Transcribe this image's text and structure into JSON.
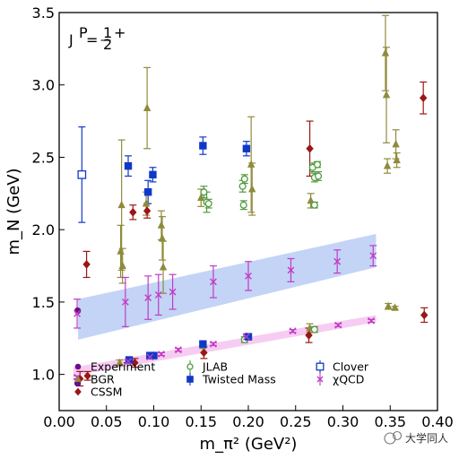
{
  "chart_data": {
    "type": "scatter",
    "title": "",
    "xlabel": "m_π² (GeV²)",
    "ylabel": "m_N (GeV)",
    "xlim": [
      0.0,
      0.4
    ],
    "ylim": [
      0.75,
      3.5
    ],
    "xticks": [
      "0.00",
      "0.05",
      "0.10",
      "0.15",
      "0.20",
      "0.25",
      "0.30",
      "0.35",
      "0.40"
    ],
    "yticks": [
      "1.0",
      "1.5",
      "2.0",
      "2.5",
      "3.0",
      "3.5"
    ],
    "grid": false,
    "legend_position": "bottom",
    "annotation": {
      "label": "J",
      "sup": "P",
      "eq": " =",
      "num": "1",
      "den": "2",
      "sign": "+"
    },
    "bands": [
      {
        "name": "upper band",
        "color": "#bccff5",
        "x": [
          0.02,
          0.335
        ],
        "upper": [
          1.52,
          1.97
        ],
        "lower": [
          1.24,
          1.74
        ]
      },
      {
        "name": "lower band",
        "color": "#f6c6f2",
        "x": [
          0.015,
          0.335
        ],
        "upper": [
          1.05,
          1.41
        ],
        "lower": [
          0.99,
          1.36
        ]
      }
    ],
    "series": [
      {
        "name": "Experiment",
        "marker": "circle",
        "color": "#6a0f8a",
        "points": [
          {
            "x": 0.0195,
            "y": 0.939,
            "err": 0.0
          },
          {
            "x": 0.0195,
            "y": 1.44,
            "err": 0.0
          }
        ]
      },
      {
        "name": "BGR",
        "marker": "triangle",
        "color": "#8f8b3b",
        "points": [
          {
            "x": 0.064,
            "y": 1.08,
            "err": 0.02
          },
          {
            "x": 0.065,
            "y": 1.85,
            "err": 0.18
          },
          {
            "x": 0.066,
            "y": 2.17,
            "err": 0.45
          },
          {
            "x": 0.067,
            "y": 1.75,
            "err": 0.12
          },
          {
            "x": 0.092,
            "y": 2.18,
            "err": 0.08
          },
          {
            "x": 0.093,
            "y": 2.84,
            "err": 0.28
          },
          {
            "x": 0.1,
            "y": 1.13,
            "err": 0.02
          },
          {
            "x": 0.108,
            "y": 2.03,
            "err": 0.1
          },
          {
            "x": 0.109,
            "y": 1.94,
            "err": 0.15
          },
          {
            "x": 0.11,
            "y": 1.74,
            "err": 0.18
          },
          {
            "x": 0.15,
            "y": 2.22,
            "err": 0.06
          },
          {
            "x": 0.198,
            "y": 1.26,
            "err": 0.02
          },
          {
            "x": 0.203,
            "y": 2.45,
            "err": 0.33
          },
          {
            "x": 0.204,
            "y": 2.28,
            "err": 0.18
          },
          {
            "x": 0.265,
            "y": 1.32,
            "err": 0.03
          },
          {
            "x": 0.266,
            "y": 2.2,
            "err": 0.05
          },
          {
            "x": 0.345,
            "y": 3.22,
            "err": 0.26
          },
          {
            "x": 0.346,
            "y": 2.93,
            "err": 0.33
          },
          {
            "x": 0.347,
            "y": 2.44,
            "err": 0.05
          },
          {
            "x": 0.348,
            "y": 1.47,
            "err": 0.02
          },
          {
            "x": 0.355,
            "y": 1.46,
            "err": 0.01
          },
          {
            "x": 0.356,
            "y": 2.59,
            "err": 0.1
          },
          {
            "x": 0.357,
            "y": 2.48,
            "err": 0.05
          }
        ]
      },
      {
        "name": "CSSM",
        "marker": "diamond",
        "color": "#9b1616",
        "points": [
          {
            "x": 0.022,
            "y": 0.97,
            "err": 0.05
          },
          {
            "x": 0.029,
            "y": 1.76,
            "err": 0.09
          },
          {
            "x": 0.03,
            "y": 0.99,
            "err": 0.03
          },
          {
            "x": 0.078,
            "y": 2.12,
            "err": 0.05
          },
          {
            "x": 0.08,
            "y": 1.08,
            "err": 0.03
          },
          {
            "x": 0.093,
            "y": 2.13,
            "err": 0.05
          },
          {
            "x": 0.153,
            "y": 1.15,
            "err": 0.04
          },
          {
            "x": 0.264,
            "y": 1.27,
            "err": 0.05
          },
          {
            "x": 0.265,
            "y": 2.56,
            "err": 0.19
          },
          {
            "x": 0.385,
            "y": 2.91,
            "err": 0.11
          },
          {
            "x": 0.386,
            "y": 1.41,
            "err": 0.05
          }
        ]
      },
      {
        "name": "JLAB",
        "marker": "open-circle",
        "color": "#4f9b3f",
        "points": [
          {
            "x": 0.152,
            "y": 1.2,
            "err": 0.02
          },
          {
            "x": 0.153,
            "y": 2.26,
            "err": 0.04
          },
          {
            "x": 0.156,
            "y": 2.19,
            "err": 0.07
          },
          {
            "x": 0.158,
            "y": 2.18,
            "err": 0.03
          },
          {
            "x": 0.194,
            "y": 2.3,
            "err": 0.04
          },
          {
            "x": 0.195,
            "y": 2.17,
            "err": 0.03
          },
          {
            "x": 0.196,
            "y": 2.35,
            "err": 0.03
          },
          {
            "x": 0.196,
            "y": 1.24,
            "err": 0.02
          },
          {
            "x": 0.268,
            "y": 2.43,
            "err": 0.03
          },
          {
            "x": 0.27,
            "y": 2.36,
            "err": 0.03
          },
          {
            "x": 0.27,
            "y": 2.17,
            "err": 0.02
          },
          {
            "x": 0.27,
            "y": 1.31,
            "err": 0.02
          },
          {
            "x": 0.273,
            "y": 2.45,
            "err": 0.02
          },
          {
            "x": 0.274,
            "y": 2.37,
            "err": 0.03
          }
        ]
      },
      {
        "name": "Twisted Mass",
        "marker": "square",
        "color": "#1038c8",
        "points": [
          {
            "x": 0.073,
            "y": 2.44,
            "err": 0.07
          },
          {
            "x": 0.074,
            "y": 1.1,
            "err": 0.01
          },
          {
            "x": 0.094,
            "y": 2.26,
            "err": 0.08
          },
          {
            "x": 0.096,
            "y": 1.13,
            "err": 0.01
          },
          {
            "x": 0.099,
            "y": 2.38,
            "err": 0.05
          },
          {
            "x": 0.1,
            "y": 1.13,
            "err": 0.01
          },
          {
            "x": 0.152,
            "y": 2.58,
            "err": 0.06
          },
          {
            "x": 0.152,
            "y": 1.21,
            "err": 0.02
          },
          {
            "x": 0.198,
            "y": 2.56,
            "err": 0.05
          },
          {
            "x": 0.2,
            "y": 1.26,
            "err": 0.01
          }
        ]
      },
      {
        "name": "Clover",
        "marker": "open-square",
        "color": "#1038c8",
        "points": [
          {
            "x": 0.024,
            "y": 2.38,
            "err": 0.33
          }
        ]
      },
      {
        "name": "χQCD",
        "marker": "x",
        "color": "#c23bc4",
        "points": [
          {
            "x": 0.019,
            "y": 1.42,
            "err": 0.1
          },
          {
            "x": 0.07,
            "y": 1.5,
            "err": 0.17
          },
          {
            "x": 0.094,
            "y": 1.53,
            "err": 0.15
          },
          {
            "x": 0.105,
            "y": 1.55,
            "err": 0.14
          },
          {
            "x": 0.12,
            "y": 1.57,
            "err": 0.12
          },
          {
            "x": 0.163,
            "y": 1.64,
            "err": 0.11
          },
          {
            "x": 0.2,
            "y": 1.68,
            "err": 0.1
          },
          {
            "x": 0.245,
            "y": 1.72,
            "err": 0.08
          },
          {
            "x": 0.294,
            "y": 1.78,
            "err": 0.08
          },
          {
            "x": 0.332,
            "y": 1.82,
            "err": 0.07
          },
          {
            "x": 0.019,
            "y": 0.98,
            "err": 0.01
          },
          {
            "x": 0.073,
            "y": 1.09,
            "err": 0.01
          },
          {
            "x": 0.096,
            "y": 1.12,
            "err": 0.01
          },
          {
            "x": 0.108,
            "y": 1.14,
            "err": 0.01
          },
          {
            "x": 0.126,
            "y": 1.17,
            "err": 0.01
          },
          {
            "x": 0.163,
            "y": 1.21,
            "err": 0.01
          },
          {
            "x": 0.198,
            "y": 1.26,
            "err": 0.01
          },
          {
            "x": 0.247,
            "y": 1.3,
            "err": 0.01
          },
          {
            "x": 0.295,
            "y": 1.34,
            "err": 0.01
          },
          {
            "x": 0.33,
            "y": 1.37,
            "err": 0.01
          }
        ]
      }
    ]
  },
  "watermark": {
    "text": "大学同人"
  }
}
